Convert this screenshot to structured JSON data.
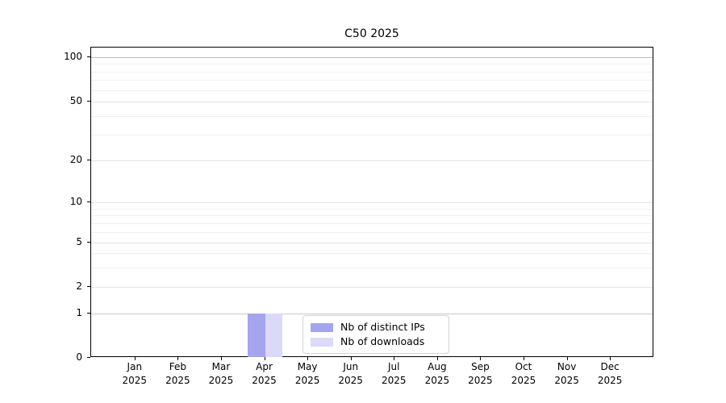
{
  "chart_data": {
    "type": "bar",
    "title": "C50 2025",
    "categories": [
      "Jan 2025",
      "Feb 2025",
      "Mar 2025",
      "Apr 2025",
      "May 2025",
      "Jun 2025",
      "Jul 2025",
      "Aug 2025",
      "Sep 2025",
      "Oct 2025",
      "Nov 2025",
      "Dec 2025"
    ],
    "series": [
      {
        "name": "Nb of distinct IPs",
        "color": "#a4a4ef",
        "values": [
          0,
          0,
          0,
          1,
          0,
          0,
          0,
          0,
          0,
          0,
          0,
          0
        ]
      },
      {
        "name": "Nb of downloads",
        "color": "#dadaf8",
        "values": [
          0,
          0,
          0,
          1,
          0,
          0,
          0,
          0,
          0,
          0,
          0,
          0
        ]
      }
    ],
    "xlabel": "",
    "ylabel": "",
    "yscale": "symlog",
    "y_major_ticks": [
      0,
      1,
      2,
      5,
      10,
      20,
      50,
      100
    ],
    "y_minor_gridlines": [
      3,
      4,
      6,
      7,
      8,
      9,
      30,
      40,
      60,
      70,
      80,
      90
    ],
    "ylim": [
      0,
      115
    ],
    "grid": "horizontal",
    "legend_position": "lower center (inside plot)"
  }
}
